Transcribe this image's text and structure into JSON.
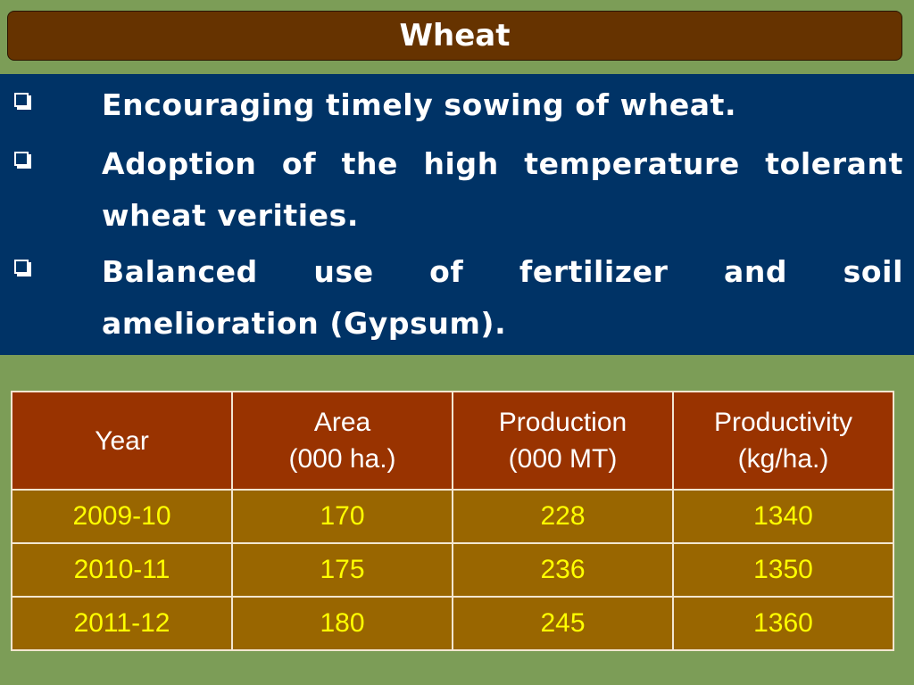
{
  "title": "Wheat",
  "bullets": [
    {
      "icon": "checkbox-bullet-icon",
      "text": "Encouraging timely sowing of wheat."
    },
    {
      "icon": "checkbox-bullet-icon",
      "text": "Adoption of the high temperature tolerant wheat verities."
    },
    {
      "icon": "checkbox-bullet-icon",
      "text": "Balanced use of fertilizer and soil amelioration (Gypsum)."
    }
  ],
  "table": {
    "headers": [
      {
        "line1": "Year",
        "line2": ""
      },
      {
        "line1": "Area",
        "line2": "(000 ha.)"
      },
      {
        "line1": "Production",
        "line2": "(000 MT)"
      },
      {
        "line1": "Productivity",
        "line2": "(kg/ha.)"
      }
    ],
    "rows": [
      [
        "2009-10",
        "170",
        "228",
        "1340"
      ],
      [
        "2010-11",
        "175",
        "236",
        "1350"
      ],
      [
        "2011-12",
        "180",
        "245",
        "1360"
      ]
    ]
  },
  "colors": {
    "background": "#7c9d57",
    "title_bar": "#663300",
    "bullet_panel": "#003366",
    "table_header": "#993300",
    "table_cell": "#996600",
    "cell_text": "#ffff00"
  }
}
